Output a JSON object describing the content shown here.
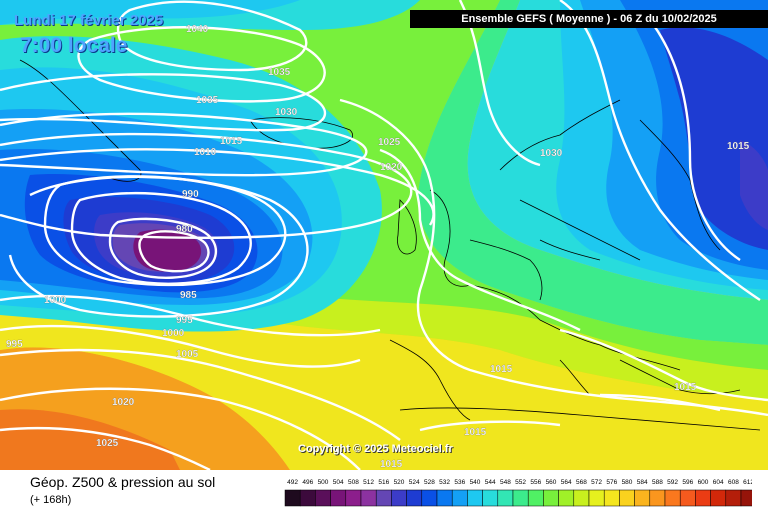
{
  "header": {
    "date": "Lundi 17 février 2025",
    "local_time": "7:00 locale",
    "run_info": "Ensemble GEFS  ( Moyenne )  -  06 Z du 10/02/2025"
  },
  "copyright": "Copyright © 2025 Meteociel.fr",
  "legend": {
    "field": "Géop. Z500 & pression au sol",
    "lead_time": "(+ 168h)",
    "scale_values": [
      "492",
      "496",
      "500",
      "504",
      "508",
      "512",
      "516",
      "520",
      "524",
      "528",
      "532",
      "536",
      "540",
      "544",
      "548",
      "552",
      "556",
      "560",
      "564",
      "568",
      "572",
      "576",
      "580",
      "584",
      "588",
      "592",
      "596",
      "600",
      "604",
      "608",
      "612"
    ],
    "scale_colors": [
      "#1e0a1e",
      "#3c0a3c",
      "#5a0f5a",
      "#781478",
      "#8c1e8c",
      "#8c32a0",
      "#6446b4",
      "#3c3cc8",
      "#1e3cd2",
      "#0a50e6",
      "#0a78f0",
      "#14a0f5",
      "#1ec8f0",
      "#28dcdc",
      "#32e6b4",
      "#3ceb8c",
      "#50f064",
      "#78f03c",
      "#a0f028",
      "#c8f01e",
      "#e6f01e",
      "#f5e61e",
      "#fad21e",
      "#fab41e",
      "#fa961e",
      "#fa781e",
      "#f55a1e",
      "#eb3c14",
      "#d2280a",
      "#b41e0a",
      "#96140a"
    ]
  },
  "isobar_labels": [
    {
      "text": "1040"
    },
    {
      "text": "1035"
    },
    {
      "text": "1035"
    },
    {
      "text": "1030"
    },
    {
      "text": "1025"
    },
    {
      "text": "1020"
    },
    {
      "text": "1015"
    },
    {
      "text": "1010"
    },
    {
      "text": "990"
    },
    {
      "text": "980"
    },
    {
      "text": "985"
    },
    {
      "text": "995"
    },
    {
      "text": "1000"
    },
    {
      "text": "1000"
    },
    {
      "text": "995"
    },
    {
      "text": "1005"
    },
    {
      "text": "1020"
    },
    {
      "text": "1025"
    },
    {
      "text": "1015"
    },
    {
      "text": "1015"
    },
    {
      "text": "1015"
    },
    {
      "text": "1015"
    },
    {
      "text": "1030"
    },
    {
      "text": "1015"
    }
  ]
}
